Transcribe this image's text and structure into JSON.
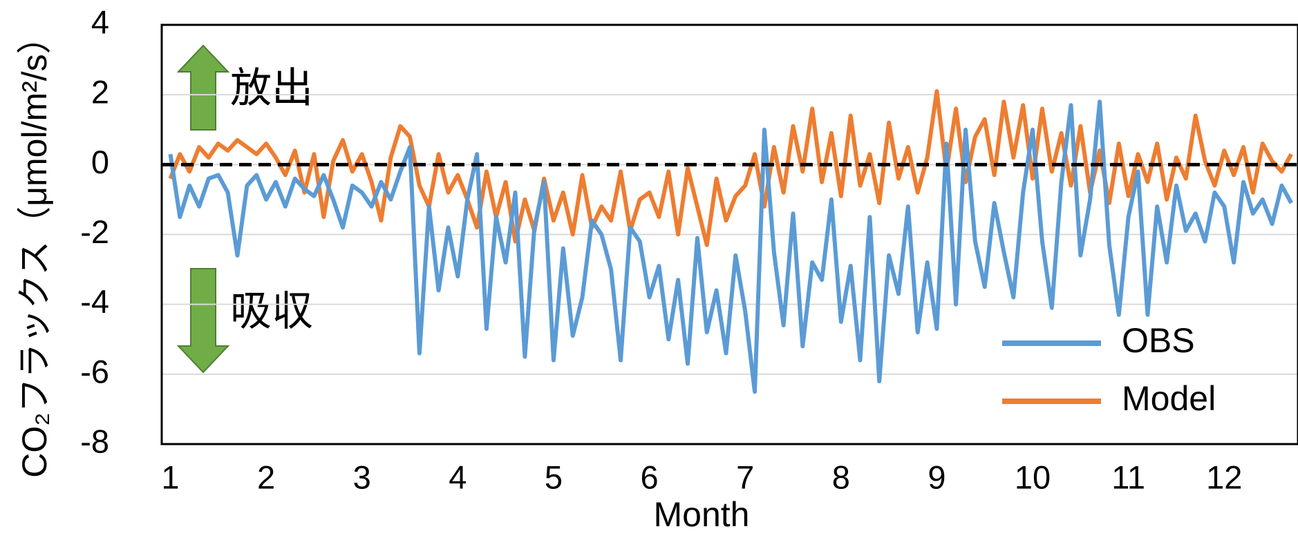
{
  "chart_data": {
    "type": "line",
    "y_label": "CO₂フラックス（μmol/m²/s）",
    "x_label": "Month",
    "annotations": [
      "放出",
      "吸収"
    ],
    "hline": 0,
    "xlim": [
      0.91,
      12.77
    ],
    "xticks": [
      1,
      2,
      3,
      4,
      5,
      6,
      7,
      8,
      9,
      10,
      11,
      12
    ],
    "ylim": [
      -8,
      4
    ],
    "yticks": [
      -8,
      -6,
      -4,
      -2,
      0,
      2,
      4
    ],
    "grid": true,
    "legend": "lower right",
    "x": [
      1.0,
      1.1,
      1.2,
      1.3,
      1.4,
      1.5,
      1.6,
      1.7,
      1.8,
      1.9,
      2.0,
      2.1,
      2.2,
      2.3,
      2.4,
      2.5,
      2.6,
      2.7,
      2.8,
      2.9,
      3.0,
      3.1,
      3.2,
      3.3,
      3.4,
      3.5,
      3.6,
      3.7,
      3.8,
      3.9,
      4.0,
      4.1,
      4.2,
      4.3,
      4.4,
      4.5,
      4.6,
      4.7,
      4.8,
      4.9,
      5.0,
      5.1,
      5.2,
      5.3,
      5.4,
      5.5,
      5.6,
      5.7,
      5.8,
      5.9,
      6.0,
      6.1,
      6.2,
      6.3,
      6.4,
      6.5,
      6.6,
      6.7,
      6.8,
      6.9,
      7.0,
      7.1,
      7.2,
      7.3,
      7.4,
      7.5,
      7.6,
      7.7,
      7.8,
      7.9,
      8.0,
      8.1,
      8.2,
      8.3,
      8.4,
      8.5,
      8.6,
      8.7,
      8.8,
      8.9,
      9.0,
      9.1,
      9.2,
      9.3,
      9.4,
      9.5,
      9.6,
      9.7,
      9.8,
      9.9,
      10.0,
      10.1,
      10.2,
      10.3,
      10.4,
      10.5,
      10.6,
      10.7,
      10.8,
      10.9,
      11.0,
      11.1,
      11.2,
      11.3,
      11.4,
      11.5,
      11.6,
      11.7,
      11.8,
      11.9,
      12.0,
      12.1,
      12.2,
      12.3,
      12.4,
      12.5,
      12.6,
      12.7
    ],
    "series": [
      {
        "name": "OBS",
        "color": "#5b9bd5",
        "values": [
          0.3,
          -1.5,
          -0.6,
          -1.2,
          -0.4,
          -0.3,
          -0.8,
          -2.6,
          -0.6,
          -0.3,
          -1.0,
          -0.5,
          -1.2,
          -0.4,
          -0.7,
          -0.9,
          -0.3,
          -1.0,
          -1.8,
          -0.6,
          -0.8,
          -1.2,
          -0.5,
          -1.0,
          -0.2,
          0.5,
          -5.4,
          -1.2,
          -3.6,
          -1.8,
          -3.2,
          -1.0,
          0.3,
          -4.7,
          -1.5,
          -2.8,
          -0.8,
          -5.5,
          -1.8,
          -0.5,
          -5.6,
          -2.4,
          -4.9,
          -3.8,
          -1.6,
          -2.0,
          -3.0,
          -5.6,
          -1.8,
          -2.2,
          -3.8,
          -2.9,
          -5.0,
          -3.3,
          -5.7,
          -2.1,
          -4.8,
          -3.6,
          -5.4,
          -2.6,
          -4.2,
          -6.5,
          1.0,
          -2.5,
          -4.6,
          -1.4,
          -5.2,
          -2.8,
          -3.3,
          -1.0,
          -4.5,
          -2.9,
          -5.6,
          -1.5,
          -6.2,
          -2.6,
          -3.7,
          -1.2,
          -4.8,
          -2.8,
          -4.7,
          0.6,
          -4.0,
          1.0,
          -2.2,
          -3.5,
          -1.1,
          -2.5,
          -3.8,
          -0.8,
          1.0,
          -2.2,
          -4.1,
          -0.5,
          1.7,
          -2.6,
          -1.0,
          1.8,
          -2.3,
          -4.3,
          -1.5,
          -0.2,
          -4.3,
          -1.2,
          -2.8,
          -0.6,
          -1.9,
          -1.4,
          -2.2,
          -0.8,
          -1.2,
          -2.8,
          -0.5,
          -1.4,
          -1.0,
          -1.7,
          -0.6,
          -1.1
        ]
      },
      {
        "name": "Model",
        "color": "#ed7d31",
        "values": [
          -0.4,
          0.3,
          -0.2,
          0.5,
          0.2,
          0.6,
          0.4,
          0.7,
          0.5,
          0.3,
          0.6,
          0.2,
          -0.3,
          0.4,
          -0.8,
          0.3,
          -1.5,
          0.1,
          0.7,
          -0.2,
          0.3,
          -0.5,
          -1.6,
          0.2,
          1.1,
          0.8,
          -0.6,
          -1.2,
          0.3,
          -0.8,
          -0.3,
          -1.0,
          -1.8,
          -0.2,
          -1.5,
          -0.5,
          -2.2,
          -1.0,
          -1.9,
          -0.4,
          -1.6,
          -0.8,
          -2.0,
          -0.3,
          -1.8,
          -1.2,
          -1.6,
          -0.2,
          -1.9,
          -1.0,
          -0.8,
          -1.5,
          -0.2,
          -2.0,
          -0.1,
          -1.2,
          -2.3,
          -0.4,
          -1.6,
          -0.9,
          -0.6,
          0.3,
          -1.2,
          0.5,
          -0.8,
          1.1,
          -0.2,
          1.6,
          -0.5,
          0.9,
          -0.9,
          1.4,
          -0.6,
          0.3,
          -1.1,
          1.2,
          -0.4,
          0.5,
          -0.8,
          0.2,
          2.1,
          -0.2,
          1.6,
          -0.5,
          0.8,
          1.3,
          -0.3,
          1.8,
          0.2,
          1.7,
          -0.4,
          1.6,
          -0.2,
          0.9,
          -0.6,
          1.1,
          -0.8,
          0.4,
          -1.1,
          0.6,
          -0.9,
          0.3,
          -0.5,
          0.6,
          -1.0,
          0.2,
          -0.4,
          1.4,
          0.1,
          -0.6,
          0.4,
          -0.3,
          0.5,
          -0.8,
          0.6,
          0.1,
          -0.2,
          0.3
        ]
      }
    ]
  }
}
